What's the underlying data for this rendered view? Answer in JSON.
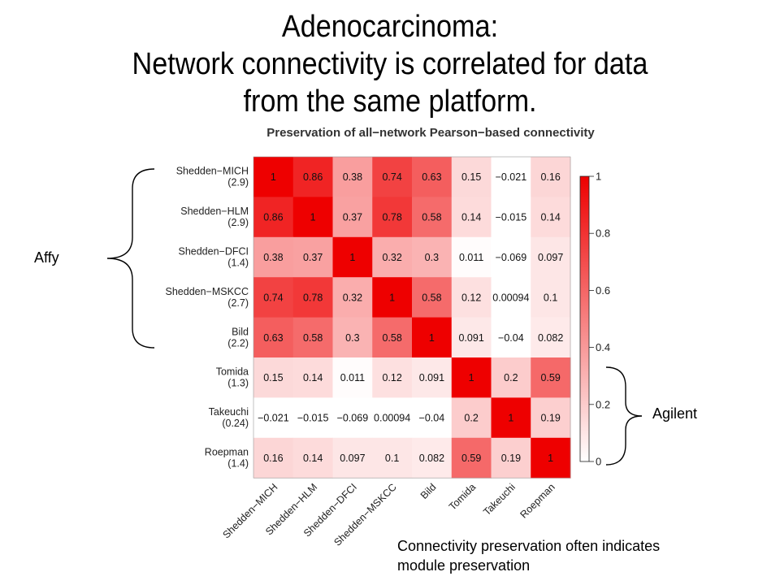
{
  "slide": {
    "title_line1": "Adenocarcinoma:",
    "title_line2": "Network connectivity is correlated for data",
    "title_line3": "from the same platform.",
    "affy_label": "Affy",
    "agilent_label": "Agilent",
    "footnote_line1": "Connectivity preservation often indicates",
    "footnote_line2": "module preservation"
  },
  "chart_data": {
    "type": "heatmap",
    "title": "Preservation of all−network Pearson−based connectivity",
    "rows": [
      {
        "name": "Shedden−MICH",
        "sub": "(2.9)"
      },
      {
        "name": "Shedden−HLM",
        "sub": "(2.9)"
      },
      {
        "name": "Shedden−DFCI",
        "sub": "(1.4)"
      },
      {
        "name": "Shedden−MSKCC",
        "sub": "(2.7)"
      },
      {
        "name": "Bild",
        "sub": "(2.2)"
      },
      {
        "name": "Tomida",
        "sub": "(1.3)"
      },
      {
        "name": "Takeuchi",
        "sub": "(0.24)"
      },
      {
        "name": "Roepman",
        "sub": "(1.4)"
      }
    ],
    "columns": [
      "Shedden−MICH",
      "Shedden−HLM",
      "Shedden−DFCI",
      "Shedden−MSKCC",
      "Bild",
      "Tomida",
      "Takeuchi",
      "Roepman"
    ],
    "values": [
      [
        1,
        0.86,
        0.38,
        0.74,
        0.63,
        0.15,
        -0.021,
        0.16
      ],
      [
        0.86,
        1,
        0.37,
        0.78,
        0.58,
        0.14,
        -0.015,
        0.14
      ],
      [
        0.38,
        0.37,
        1,
        0.32,
        0.3,
        0.011,
        -0.069,
        0.097
      ],
      [
        0.74,
        0.78,
        0.32,
        1,
        0.58,
        0.12,
        0.00094,
        0.1
      ],
      [
        0.63,
        0.58,
        0.3,
        0.58,
        1,
        0.091,
        -0.04,
        0.082
      ],
      [
        0.15,
        0.14,
        0.011,
        0.12,
        0.091,
        1,
        0.2,
        0.59
      ],
      [
        -0.021,
        -0.015,
        -0.069,
        0.00094,
        -0.04,
        0.2,
        1,
        0.19
      ],
      [
        0.16,
        0.14,
        0.097,
        0.1,
        0.082,
        0.59,
        0.19,
        1
      ]
    ],
    "cell_labels": [
      [
        "1",
        "0.86",
        "0.38",
        "0.74",
        "0.63",
        "0.15",
        "−0.021",
        "0.16"
      ],
      [
        "0.86",
        "1",
        "0.37",
        "0.78",
        "0.58",
        "0.14",
        "−0.015",
        "0.14"
      ],
      [
        "0.38",
        "0.37",
        "1",
        "0.32",
        "0.3",
        "0.011",
        "−0.069",
        "0.097"
      ],
      [
        "0.74",
        "0.78",
        "0.32",
        "1",
        "0.58",
        "0.12",
        "0.00094",
        "0.1"
      ],
      [
        "0.63",
        "0.58",
        "0.3",
        "0.58",
        "1",
        "0.091",
        "−0.04",
        "0.082"
      ],
      [
        "0.15",
        "0.14",
        "0.011",
        "0.12",
        "0.091",
        "1",
        "0.2",
        "0.59"
      ],
      [
        "−0.021",
        "−0.015",
        "−0.069",
        "0.00094",
        "−0.04",
        "0.2",
        "1",
        "0.19"
      ],
      [
        "0.16",
        "0.14",
        "0.097",
        "0.1",
        "0.082",
        "0.59",
        "0.19",
        "1"
      ]
    ],
    "color_scale": {
      "low": "#ffffff",
      "high": "#ee0000",
      "range": [
        0,
        1
      ]
    },
    "colorbar_ticks": [
      {
        "value": 1,
        "label": "1"
      },
      {
        "value": 0.8,
        "label": "0.8"
      },
      {
        "value": 0.6,
        "label": "0.6"
      },
      {
        "value": 0.4,
        "label": "0.4"
      },
      {
        "value": 0.2,
        "label": "0.2"
      },
      {
        "value": 0,
        "label": "0"
      }
    ]
  }
}
